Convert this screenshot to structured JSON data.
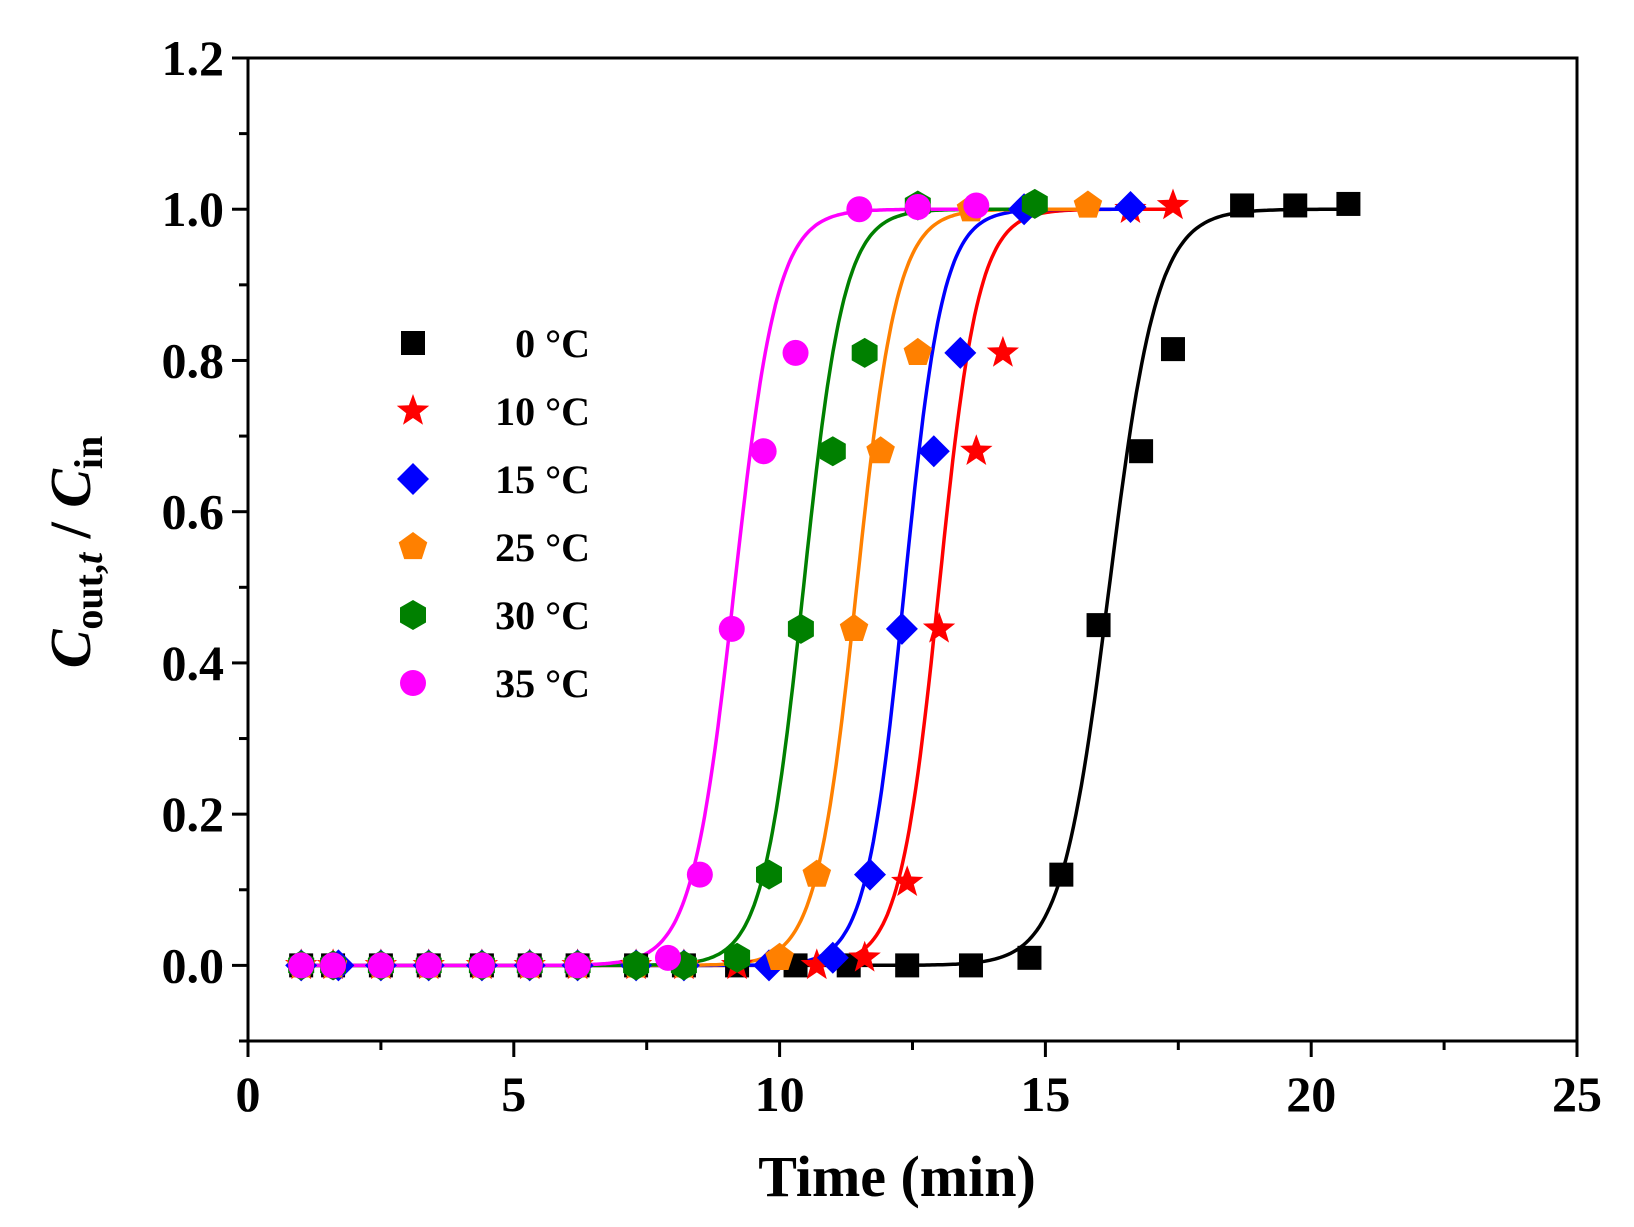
{
  "chart_data": {
    "type": "scatter",
    "title": "",
    "xlabel": "Time (min)",
    "ylabel": {
      "main": "C",
      "sub1": "out,",
      "sub1_italic": "t",
      "sep": " / ",
      "main2": "C",
      "sub2": "in"
    },
    "xlim": [
      0,
      25
    ],
    "ylim": [
      -0.1,
      1.2
    ],
    "xticks": [
      0,
      5,
      10,
      15,
      20,
      25
    ],
    "xtick_labels": [
      "0",
      "5",
      "10",
      "15",
      "20",
      "25"
    ],
    "yticks": [
      0.0,
      0.2,
      0.4,
      0.6,
      0.8,
      1.0,
      1.2
    ],
    "ytick_labels": [
      "0.0",
      "0.2",
      "0.4",
      "0.6",
      "0.8",
      "1.0",
      "1.2"
    ],
    "legend_position": "left-center",
    "series": [
      {
        "name": "0 °C",
        "color": "#000000",
        "marker": "square",
        "fit_center": 16.2,
        "fit_slope": 0.45,
        "x": [
          1.0,
          1.6,
          2.5,
          3.4,
          4.4,
          5.3,
          6.2,
          7.3,
          8.2,
          9.2,
          10.3,
          11.3,
          12.4,
          13.6,
          14.7,
          15.3,
          16.0,
          16.8,
          17.4,
          18.7,
          19.7,
          20.7
        ],
        "y": [
          0.0,
          0.0,
          0.0,
          0.0,
          0.0,
          0.0,
          0.0,
          0.0,
          0.0,
          0.0,
          0.0,
          0.0,
          0.0,
          0.0,
          0.01,
          0.12,
          0.45,
          0.68,
          0.815,
          1.005,
          1.005,
          1.007
        ]
      },
      {
        "name": "10 °C",
        "color": "#ff0000",
        "marker": "star",
        "fit_center": 13.0,
        "fit_slope": 0.37,
        "x": [
          1.0,
          1.6,
          2.5,
          3.4,
          4.4,
          5.3,
          6.2,
          7.3,
          8.2,
          9.2,
          10.7,
          11.6,
          12.4,
          13.0,
          13.7,
          14.2,
          16.6,
          17.4
        ],
        "y": [
          0.0,
          0.0,
          0.0,
          0.0,
          0.0,
          0.0,
          0.0,
          0.0,
          0.0,
          0.0,
          0.0,
          0.01,
          0.11,
          0.445,
          0.68,
          0.81,
          1.0,
          1.005
        ]
      },
      {
        "name": "15 °C",
        "color": "#0000ff",
        "marker": "diamond",
        "fit_center": 12.35,
        "fit_slope": 0.36,
        "x": [
          1.0,
          1.7,
          2.5,
          3.4,
          4.4,
          5.3,
          6.2,
          7.3,
          8.2,
          9.8,
          11.0,
          11.7,
          12.3,
          12.9,
          13.4,
          14.6,
          16.6
        ],
        "y": [
          0.0,
          0.0,
          0.0,
          0.0,
          0.0,
          0.0,
          0.0,
          0.0,
          0.0,
          0.0,
          0.01,
          0.12,
          0.445,
          0.68,
          0.81,
          1.0,
          1.003
        ]
      },
      {
        "name": "25 °C",
        "color": "#ff8000",
        "marker": "pentagon",
        "fit_center": 11.45,
        "fit_slope": 0.38,
        "x": [
          1.0,
          1.6,
          2.5,
          3.4,
          4.4,
          5.3,
          6.2,
          7.3,
          8.2,
          10.0,
          10.7,
          11.4,
          11.9,
          12.6,
          13.6,
          15.8
        ],
        "y": [
          0.0,
          0.0,
          0.0,
          0.0,
          0.0,
          0.0,
          0.0,
          0.0,
          0.0,
          0.01,
          0.12,
          0.445,
          0.68,
          0.81,
          1.0,
          1.005
        ]
      },
      {
        "name": "30 °C",
        "color": "#008000",
        "marker": "hexagon",
        "fit_center": 10.45,
        "fit_slope": 0.38,
        "x": [
          1.0,
          1.6,
          2.5,
          3.4,
          4.4,
          5.3,
          6.2,
          7.3,
          8.2,
          9.2,
          9.8,
          10.4,
          11.0,
          11.6,
          12.6,
          14.8
        ],
        "y": [
          0.0,
          0.0,
          0.0,
          0.0,
          0.0,
          0.0,
          0.0,
          0.0,
          0.0,
          0.01,
          0.12,
          0.445,
          0.68,
          0.81,
          1.005,
          1.007
        ]
      },
      {
        "name": "35 °C",
        "color": "#ff00ff",
        "marker": "circle",
        "fit_center": 9.15,
        "fit_slope": 0.4,
        "x": [
          1.0,
          1.6,
          2.5,
          3.4,
          4.4,
          5.3,
          6.2,
          7.9,
          8.5,
          9.1,
          9.7,
          10.3,
          11.5,
          12.6,
          13.7
        ],
        "y": [
          0.0,
          0.0,
          0.0,
          0.0,
          0.0,
          0.0,
          0.0,
          0.01,
          0.12,
          0.445,
          0.68,
          0.81,
          1.0,
          1.003,
          1.005
        ]
      }
    ]
  }
}
